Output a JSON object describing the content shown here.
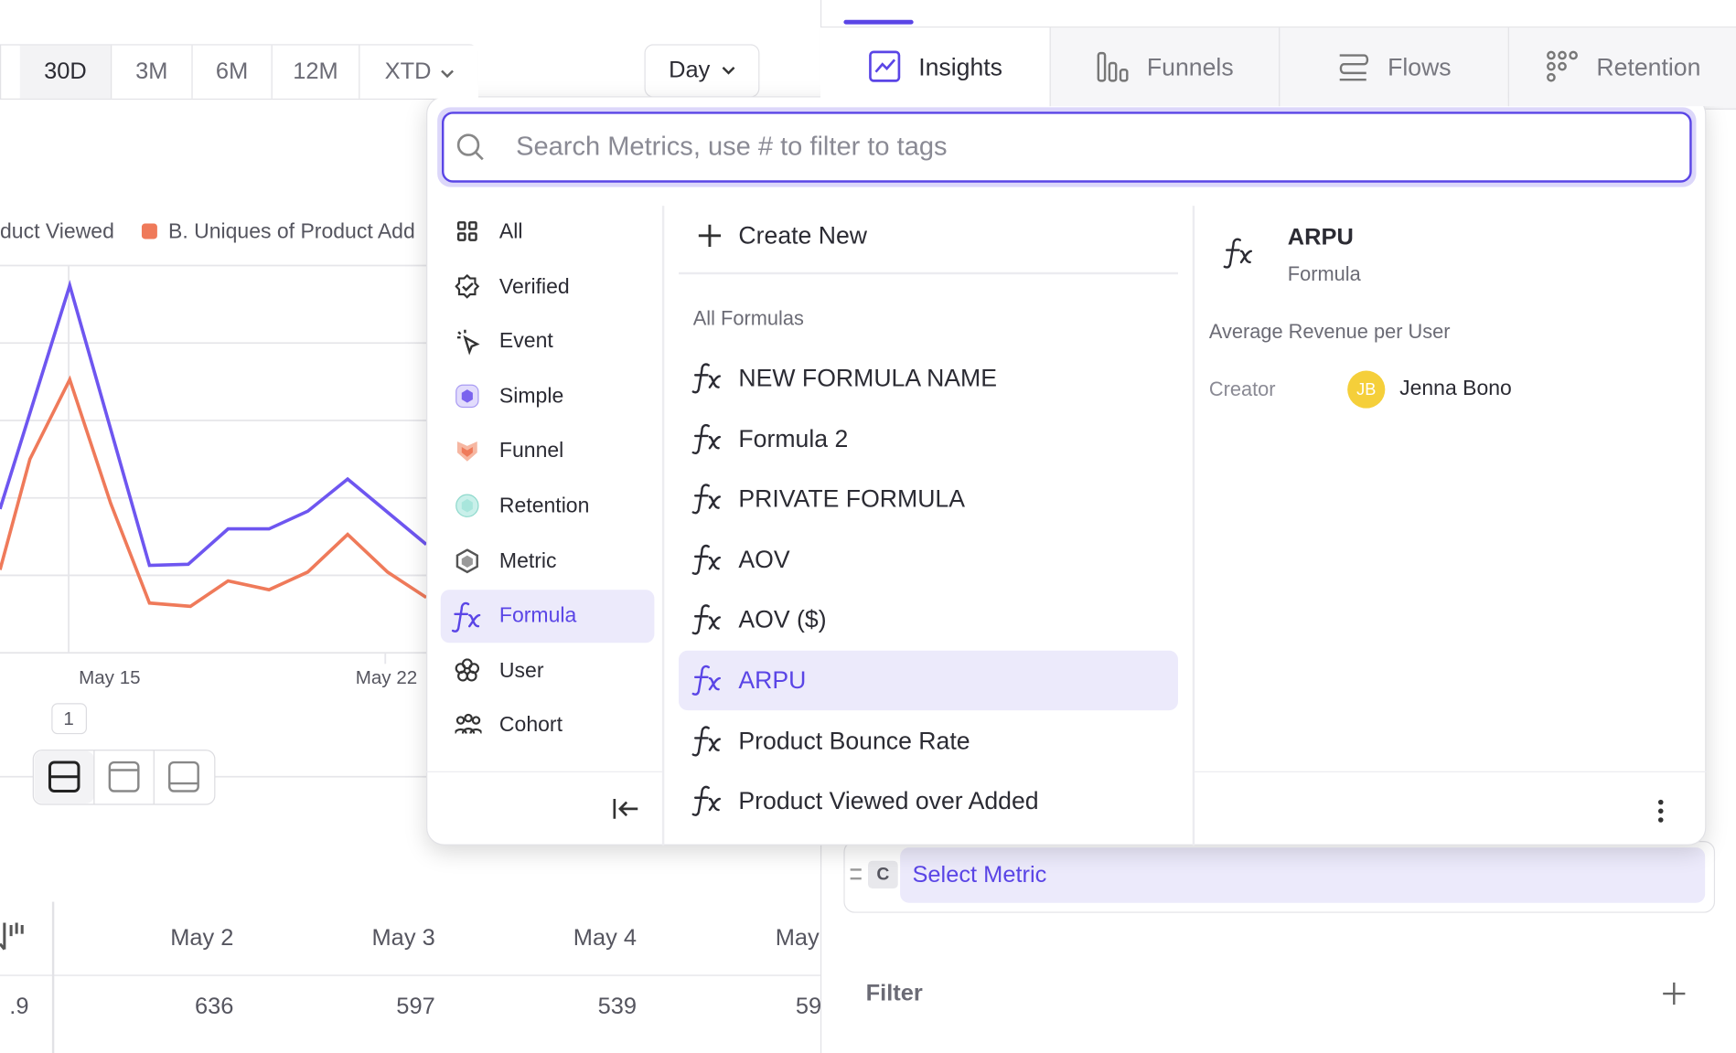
{
  "toolbar": {
    "ranges": [
      "30D",
      "3M",
      "6M",
      "12M",
      "XTD"
    ],
    "interval": "Day"
  },
  "tabs": [
    "Insights",
    "Funnels",
    "Flows",
    "Retention"
  ],
  "chart": {
    "legend": [
      "duct Viewed",
      "B. Uniques of Product Add"
    ],
    "x_labels": [
      "May 15",
      "May 22"
    ],
    "page": "1"
  },
  "table": {
    "headers": [
      "May 2",
      "May 3",
      "May 4",
      "May"
    ],
    "row": [
      ".9",
      636,
      597,
      539,
      59
    ]
  },
  "query": {
    "letter": "C",
    "placeholder": "Select Metric"
  },
  "filter": "Filter",
  "picker": {
    "search_placeholder": "Search Metrics, use # to filter to tags",
    "categories": [
      "All",
      "Verified",
      "Event",
      "Simple",
      "Funnel",
      "Retention",
      "Metric",
      "Formula",
      "User",
      "Cohort"
    ],
    "create_new": "Create New",
    "section": "All Formulas",
    "formulas": [
      "NEW FORMULA NAME",
      "Formula 2",
      "PRIVATE FORMULA",
      "AOV",
      "AOV ($)",
      "ARPU",
      "Product Bounce Rate",
      "Product Viewed over Added"
    ],
    "detail": {
      "title": "ARPU",
      "type": "Formula",
      "description": "Average Revenue per User",
      "creator_label": "Creator",
      "creator_initials": "JB",
      "creator_name": "Jenna Bono"
    }
  }
}
